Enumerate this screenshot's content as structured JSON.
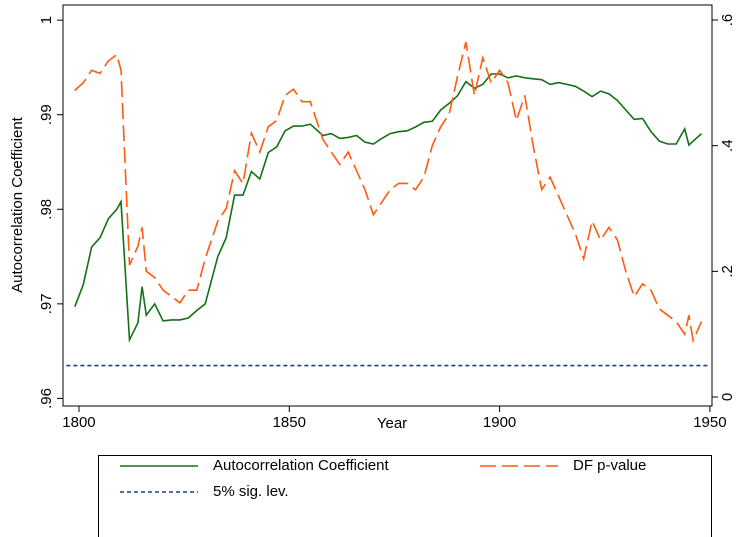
{
  "chart_data": {
    "type": "line",
    "x_label": "Year",
    "y_label": "Autocorrelation Coefficient",
    "x": [
      1799,
      1801,
      1803,
      1805,
      1807,
      1809,
      1810,
      1812,
      1814,
      1815,
      1816,
      1818,
      1820,
      1822,
      1824,
      1826,
      1828,
      1830,
      1833,
      1835,
      1837,
      1839,
      1841,
      1843,
      1845,
      1847,
      1849,
      1851,
      1853,
      1855,
      1858,
      1860,
      1862,
      1864,
      1866,
      1868,
      1870,
      1872,
      1874,
      1876,
      1878,
      1880,
      1882,
      1884,
      1886,
      1888,
      1890,
      1892,
      1894,
      1896,
      1898,
      1900,
      1902,
      1904,
      1906,
      1908,
      1910,
      1912,
      1914,
      1916,
      1918,
      1920,
      1922,
      1924,
      1926,
      1928,
      1930,
      1932,
      1934,
      1936,
      1938,
      1940,
      1942,
      1944,
      1945,
      1946,
      1948
    ],
    "series": [
      {
        "name": "Autocorrelation Coefficient",
        "color": "#157015",
        "line_style": "solid",
        "axis": "y",
        "values": [
          0.9697,
          0.972,
          0.976,
          0.977,
          0.979,
          0.98,
          0.9808,
          0.9662,
          0.968,
          0.9718,
          0.9688,
          0.97,
          0.9682,
          0.9683,
          0.9683,
          0.9685,
          0.9693,
          0.97,
          0.975,
          0.977,
          0.9815,
          0.9815,
          0.984,
          0.9832,
          0.986,
          0.9866,
          0.9883,
          0.9888,
          0.9888,
          0.989,
          0.9878,
          0.988,
          0.9875,
          0.9876,
          0.9878,
          0.9871,
          0.9869,
          0.9875,
          0.988,
          0.9882,
          0.9883,
          0.9887,
          0.9892,
          0.9893,
          0.9905,
          0.9912,
          0.992,
          0.9935,
          0.9928,
          0.9932,
          0.9943,
          0.9943,
          0.9939,
          0.9941,
          0.9939,
          0.9938,
          0.9937,
          0.9932,
          0.9934,
          0.9932,
          0.993,
          0.9925,
          0.9919,
          0.9925,
          0.9922,
          0.9915,
          0.9905,
          0.9895,
          0.9896,
          0.9882,
          0.9872,
          0.9869,
          0.9869,
          0.9885,
          0.9868,
          0.9872,
          0.988
        ]
      },
      {
        "name": "DF p-value",
        "color": "#ff5a10",
        "line_style": "long-dash",
        "axis": "y2",
        "values": [
          0.488,
          0.5,
          0.52,
          0.515,
          0.535,
          0.545,
          0.52,
          0.21,
          0.24,
          0.27,
          0.2,
          0.19,
          0.17,
          0.16,
          0.15,
          0.17,
          0.17,
          0.22,
          0.28,
          0.3,
          0.36,
          0.34,
          0.42,
          0.39,
          0.43,
          0.44,
          0.48,
          0.49,
          0.47,
          0.47,
          0.41,
          0.39,
          0.37,
          0.39,
          0.36,
          0.33,
          0.29,
          0.31,
          0.33,
          0.34,
          0.34,
          0.33,
          0.35,
          0.4,
          0.43,
          0.45,
          0.51,
          0.565,
          0.48,
          0.54,
          0.5,
          0.52,
          0.5,
          0.44,
          0.48,
          0.4,
          0.33,
          0.35,
          0.32,
          0.29,
          0.26,
          0.22,
          0.28,
          0.25,
          0.27,
          0.25,
          0.2,
          0.16,
          0.18,
          0.17,
          0.14,
          0.13,
          0.12,
          0.1,
          0.13,
          0.09,
          0.12
        ]
      },
      {
        "name": "5% sig. lev.",
        "color": "#1f3f7f",
        "line_style": "short-dash",
        "axis": "y2",
        "x": [
          1797,
          1950
        ],
        "values": [
          0.05,
          0.05
        ]
      }
    ],
    "xlim": [
      1796.2,
      1950.5
    ],
    "xticks": [
      1800,
      1850,
      1900,
      1950
    ],
    "ylim": [
      0.9592,
      1.0016
    ],
    "yticks": [
      {
        "value": 0.96,
        "label": ".96"
      },
      {
        "value": 0.97,
        "label": ".97"
      },
      {
        "value": 0.98,
        "label": ".98"
      },
      {
        "value": 0.99,
        "label": ".99"
      },
      1
    ],
    "y2lim": [
      -0.0143,
      0.6239
    ],
    "y2ticks": [
      0,
      {
        "value": 0.2,
        "label": ".2"
      },
      {
        "value": 0.4,
        "label": ".4"
      },
      {
        "value": 0.6,
        "label": ".6"
      }
    ],
    "grid": false,
    "legend": "bottom"
  }
}
